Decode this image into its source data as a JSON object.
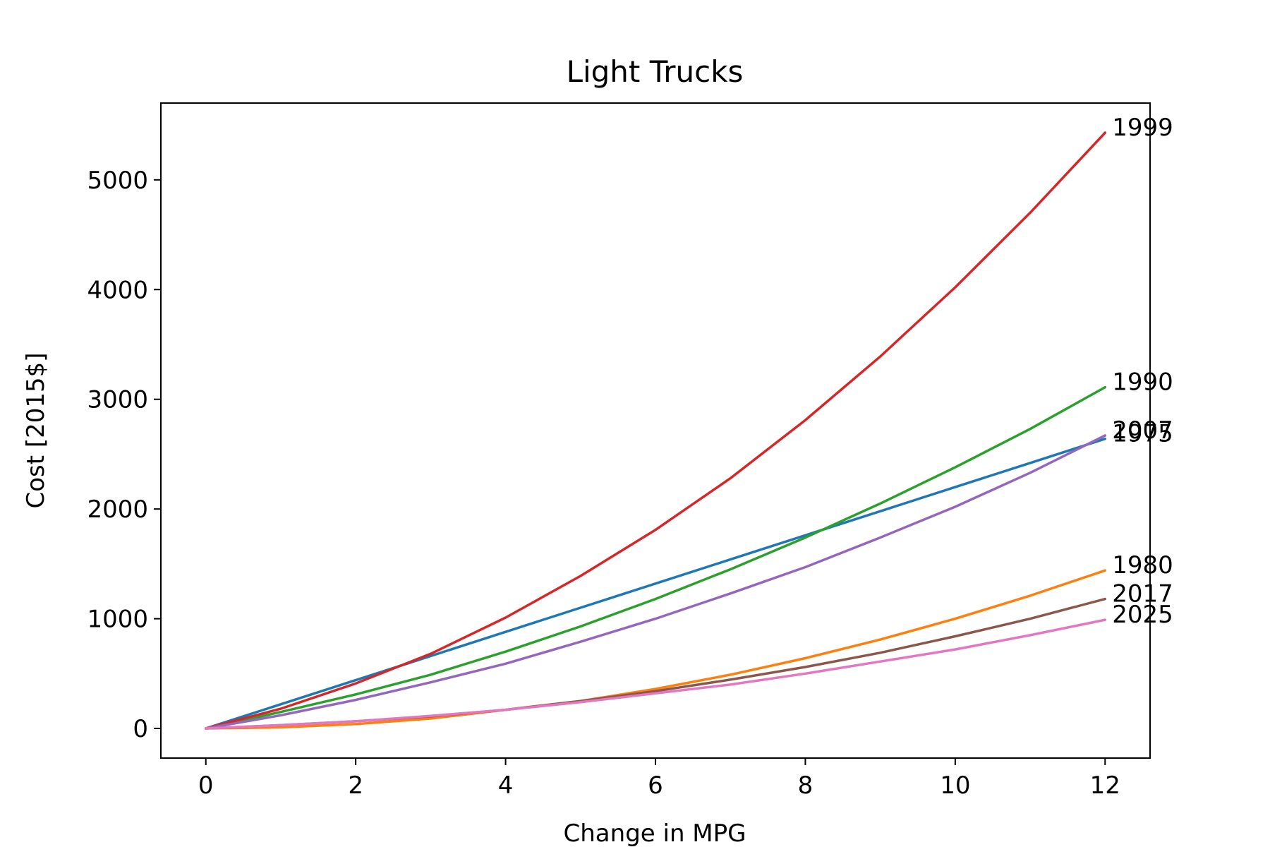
{
  "chart_data": {
    "type": "line",
    "title": "Light Trucks",
    "xlabel": "Change in MPG",
    "ylabel": "Cost [2015$]",
    "xlim": [
      -0.6,
      12.6
    ],
    "ylim": [
      -270,
      5700
    ],
    "xticks": [
      0,
      2,
      4,
      6,
      8,
      10,
      12
    ],
    "yticks": [
      0,
      1000,
      2000,
      3000,
      4000,
      5000
    ],
    "grid": false,
    "legend": "none",
    "x": [
      0,
      1,
      2,
      3,
      4,
      5,
      6,
      7,
      8,
      9,
      10,
      11,
      12
    ],
    "series": [
      {
        "name": "1975",
        "color": "#1f77b4",
        "values": [
          0,
          220,
          440,
          660,
          880,
          1100,
          1320,
          1540,
          1760,
          1980,
          2200,
          2420,
          2640
        ]
      },
      {
        "name": "1980",
        "color": "#ff7f0e",
        "values": [
          0,
          10,
          40,
          90,
          170,
          250,
          360,
          490,
          640,
          810,
          1000,
          1210,
          1440
        ]
      },
      {
        "name": "1990",
        "color": "#2ca02c",
        "values": [
          0,
          150,
          310,
          490,
          700,
          930,
          1180,
          1450,
          1740,
          2050,
          2380,
          2730,
          3110
        ]
      },
      {
        "name": "1999",
        "color": "#d62728",
        "values": [
          0,
          180,
          410,
          680,
          1010,
          1390,
          1810,
          2280,
          2810,
          3390,
          4020,
          4700,
          5430
        ]
      },
      {
        "name": "2007",
        "color": "#9467bd",
        "values": [
          0,
          120,
          260,
          420,
          590,
          790,
          1000,
          1230,
          1470,
          1740,
          2020,
          2330,
          2670
        ]
      },
      {
        "name": "2017",
        "color": "#8c564b",
        "values": [
          0,
          30,
          65,
          110,
          170,
          250,
          340,
          445,
          560,
          690,
          840,
          1000,
          1180
        ]
      },
      {
        "name": "2025",
        "color": "#e377c2",
        "values": [
          0,
          30,
          65,
          115,
          170,
          240,
          320,
          400,
          500,
          610,
          720,
          850,
          990
        ]
      }
    ],
    "end_labels": [
      "1999",
      "1990",
      "2007",
      "1975",
      "1980",
      "2017",
      "2025"
    ]
  }
}
